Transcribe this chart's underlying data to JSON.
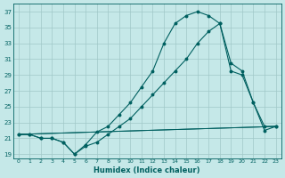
{
  "xlabel": "Humidex (Indice chaleur)",
  "xlim": [
    -0.5,
    23.5
  ],
  "ylim": [
    18.5,
    38
  ],
  "yticks": [
    19,
    21,
    23,
    25,
    27,
    29,
    31,
    33,
    35,
    37
  ],
  "xtick_labels": [
    "0",
    "1",
    "2",
    "3",
    "4",
    "5",
    "6",
    "7",
    "8",
    "9",
    "10",
    "11",
    "12",
    "13",
    "14",
    "15",
    "16",
    "17",
    "18",
    "19",
    "20",
    "21",
    "22",
    "23"
  ],
  "xtick_positions": [
    0,
    1,
    2,
    3,
    4,
    5,
    6,
    7,
    8,
    9,
    10,
    11,
    12,
    13,
    14,
    15,
    16,
    17,
    18,
    19,
    20,
    21,
    22,
    23
  ],
  "bg_color": "#c5e8e8",
  "line_color": "#006060",
  "grid_color": "#a0c8c8",
  "curve1_x": [
    0,
    1,
    2,
    3,
    4,
    5,
    6,
    7,
    8,
    9,
    10,
    11,
    12,
    13,
    14,
    15,
    16,
    17,
    18,
    19,
    20,
    21,
    22,
    23
  ],
  "curve1_y": [
    21.5,
    21.5,
    21.0,
    21.0,
    20.5,
    19.0,
    20.2,
    21.8,
    22.5,
    24.0,
    25.5,
    27.5,
    29.5,
    33.0,
    35.5,
    36.5,
    37.0,
    36.5,
    35.5,
    30.5,
    29.5,
    25.5,
    22.5,
    22.5
  ],
  "curve2_x": [
    0,
    1,
    2,
    3,
    4,
    5,
    6,
    7,
    8,
    9,
    10,
    11,
    12,
    13,
    14,
    15,
    16,
    17,
    18,
    19,
    20,
    21,
    22,
    23
  ],
  "curve2_y": [
    21.5,
    21.5,
    21.0,
    21.0,
    20.5,
    19.0,
    20.0,
    20.5,
    21.5,
    22.5,
    23.5,
    25.0,
    26.5,
    28.0,
    29.5,
    31.0,
    33.0,
    34.5,
    35.5,
    29.5,
    29.0,
    25.5,
    22.0,
    22.5
  ],
  "line3_x": [
    0,
    23
  ],
  "line3_y": [
    21.5,
    22.5
  ],
  "line4_x": [
    0,
    23
  ],
  "line4_y": [
    21.5,
    22.5
  ]
}
